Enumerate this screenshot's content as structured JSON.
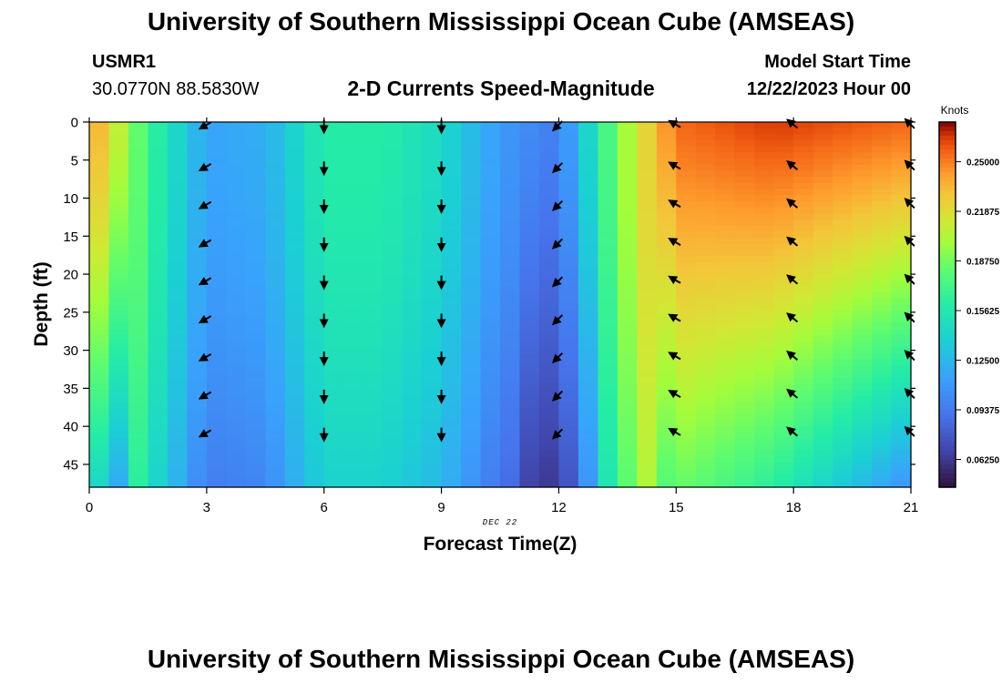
{
  "page": {
    "title": "University of Southern Mississippi Ocean Cube (AMSEAS)",
    "footer_title": "University of Southern Mississippi Ocean Cube (AMSEAS)"
  },
  "station": {
    "id": "USMR1",
    "coords": "30.0770N  88.5830W"
  },
  "model": {
    "start_label": "Model Start Time",
    "start_value": "12/22/2023 Hour 00"
  },
  "colorbar": {
    "unit": "Knots",
    "ticks": [
      "0.25000",
      "0.21875",
      "0.18750",
      "0.15625",
      "0.12500",
      "0.09375",
      "0.06250"
    ],
    "tick_values": [
      0.25,
      0.21875,
      0.1875,
      0.15625,
      0.125,
      0.09375,
      0.0625
    ],
    "min": 0.045,
    "max": 0.275
  },
  "chart_data": {
    "type": "heatmap",
    "title": "2-D Currents Speed-Magnitude",
    "xlabel": "Forecast Time(Z)",
    "ylabel": "Depth (ft)",
    "date_label": "DEC 22",
    "xlim": [
      0,
      21
    ],
    "ylim": [
      0,
      48
    ],
    "x_ticks": [
      0,
      3,
      6,
      9,
      12,
      15,
      18,
      21
    ],
    "x_tick_labels": [
      "0",
      "3",
      "6",
      "9",
      "12",
      "15",
      "18",
      "21"
    ],
    "y_ticks": [
      0,
      5,
      10,
      15,
      20,
      25,
      30,
      35,
      40,
      45
    ],
    "y_tick_labels": [
      "0",
      "5",
      "10",
      "15",
      "20",
      "25",
      "30",
      "35",
      "40",
      "45"
    ],
    "speed_profile_surface": [
      {
        "hour": 0,
        "knots": 0.245
      },
      {
        "hour": 1.5,
        "knots": 0.17
      },
      {
        "hour": 3,
        "knots": 0.115
      },
      {
        "hour": 4.5,
        "knots": 0.12
      },
      {
        "hour": 6,
        "knots": 0.16
      },
      {
        "hour": 7.5,
        "knots": 0.16
      },
      {
        "hour": 9,
        "knots": 0.145
      },
      {
        "hour": 10.5,
        "knots": 0.11
      },
      {
        "hour": 12,
        "knots": 0.095
      },
      {
        "hour": 13.5,
        "knots": 0.19
      },
      {
        "hour": 15,
        "knots": 0.255
      },
      {
        "hour": 17.5,
        "knots": 0.265
      },
      {
        "hour": 21,
        "knots": 0.255
      }
    ],
    "vector_times": [
      3,
      6,
      9,
      12,
      15,
      18,
      21
    ],
    "vector_depths": [
      0,
      5,
      10,
      15,
      20,
      25,
      30,
      35,
      40
    ],
    "vector_directions_deg": [
      {
        "hour": 3,
        "dir": 240
      },
      {
        "hour": 6,
        "dir": 180
      },
      {
        "hour": 9,
        "dir": 180
      },
      {
        "hour": 12,
        "dir": 225
      },
      {
        "hour": 15,
        "dir": 300
      },
      {
        "hour": 18,
        "dir": 310
      },
      {
        "hour": 21,
        "dir": 315
      }
    ]
  }
}
